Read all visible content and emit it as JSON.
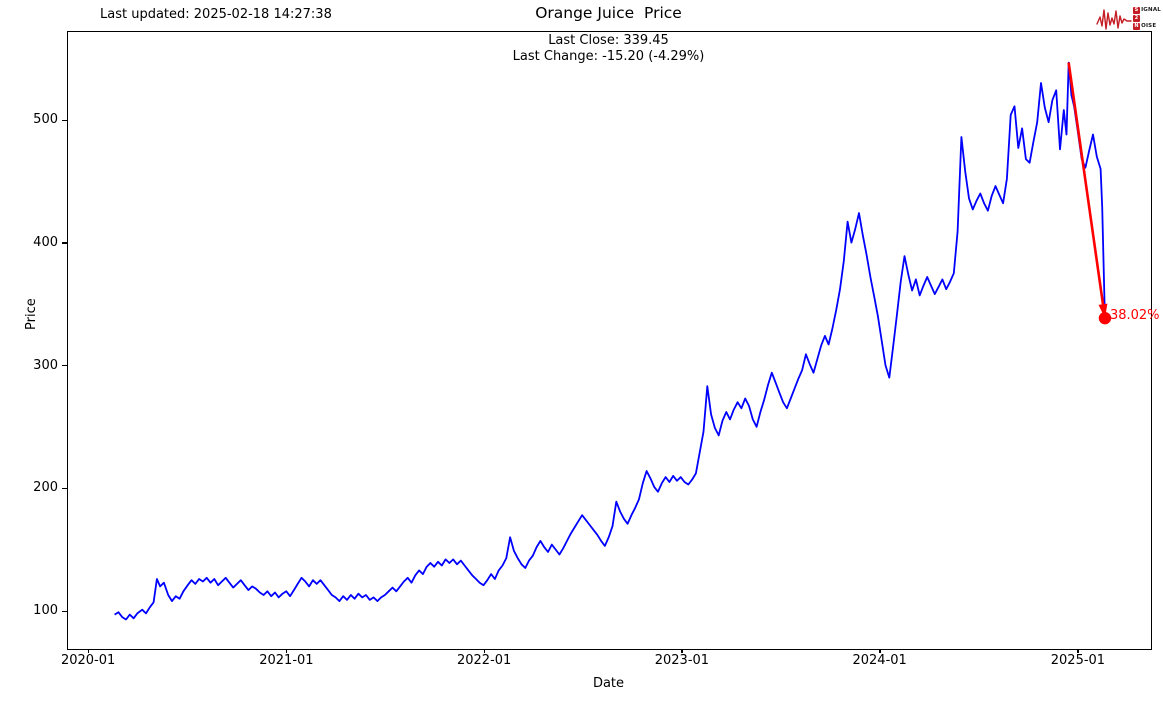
{
  "header": {
    "last_updated": "Last updated: 2025-02-18 14:27:38",
    "title": "Orange Juice  Price",
    "subtitle_close": "Last Close: 339.45",
    "subtitle_change": "Last Change: -15.20 (-4.29%)"
  },
  "logo": {
    "word1_initial": "S",
    "word1_rest": "IGNAL",
    "word2": "2",
    "word3_initial": "N",
    "word3_rest": "OISE",
    "color": "#c41d23"
  },
  "chart_data": {
    "type": "line",
    "title": "Orange Juice  Price",
    "xlabel": "Date",
    "ylabel": "Price",
    "legend": "none",
    "grid": false,
    "x_ticks": [
      "2020-01",
      "2021-01",
      "2022-01",
      "2023-01",
      "2024-01",
      "2025-01"
    ],
    "y_ticks": [
      100,
      200,
      300,
      400,
      500
    ],
    "xlim": [
      "2019-11-23",
      "2025-05-14"
    ],
    "ylim": [
      70,
      572.5
    ],
    "line_color": "#0000ff",
    "annotation": {
      "label": "38.02%",
      "color": "#ff0000",
      "from": [
        "2024-12-13",
        547.6
      ],
      "to": [
        "2025-02-18",
        339.45
      ],
      "last_close": 339.45,
      "last_change": -15.2,
      "last_change_pct": -4.29
    },
    "series": [
      {
        "name": "Price",
        "points": [
          [
            "2020-02-17",
            98
          ],
          [
            "2020-02-24",
            100
          ],
          [
            "2020-03-02",
            96
          ],
          [
            "2020-03-09",
            94
          ],
          [
            "2020-03-16",
            98
          ],
          [
            "2020-03-23",
            95
          ],
          [
            "2020-03-30",
            99
          ],
          [
            "2020-04-08",
            102
          ],
          [
            "2020-04-15",
            99
          ],
          [
            "2020-04-22",
            104
          ],
          [
            "2020-04-29",
            108
          ],
          [
            "2020-05-05",
            127
          ],
          [
            "2020-05-11",
            121
          ],
          [
            "2020-05-18",
            124
          ],
          [
            "2020-05-26",
            114
          ],
          [
            "2020-06-02",
            109
          ],
          [
            "2020-06-09",
            113
          ],
          [
            "2020-06-16",
            111
          ],
          [
            "2020-06-23",
            117
          ],
          [
            "2020-07-01",
            122
          ],
          [
            "2020-07-08",
            126
          ],
          [
            "2020-07-15",
            123
          ],
          [
            "2020-07-22",
            127
          ],
          [
            "2020-07-29",
            125
          ],
          [
            "2020-08-05",
            128
          ],
          [
            "2020-08-12",
            124
          ],
          [
            "2020-08-19",
            127
          ],
          [
            "2020-08-26",
            122
          ],
          [
            "2020-09-02",
            125
          ],
          [
            "2020-09-09",
            128
          ],
          [
            "2020-09-16",
            124
          ],
          [
            "2020-09-23",
            120
          ],
          [
            "2020-09-30",
            123
          ],
          [
            "2020-10-07",
            126
          ],
          [
            "2020-10-14",
            122
          ],
          [
            "2020-10-21",
            118
          ],
          [
            "2020-10-28",
            121
          ],
          [
            "2020-11-04",
            119
          ],
          [
            "2020-11-11",
            116
          ],
          [
            "2020-11-18",
            114
          ],
          [
            "2020-11-25",
            117
          ],
          [
            "2020-12-02",
            113
          ],
          [
            "2020-12-09",
            116
          ],
          [
            "2020-12-16",
            112
          ],
          [
            "2020-12-23",
            115
          ],
          [
            "2020-12-30",
            117
          ],
          [
            "2021-01-06",
            113
          ],
          [
            "2021-01-13",
            118
          ],
          [
            "2021-01-20",
            123
          ],
          [
            "2021-01-27",
            128
          ],
          [
            "2021-02-03",
            125
          ],
          [
            "2021-02-10",
            121
          ],
          [
            "2021-02-17",
            126
          ],
          [
            "2021-02-24",
            123
          ],
          [
            "2021-03-03",
            126
          ],
          [
            "2021-03-10",
            122
          ],
          [
            "2021-03-17",
            118
          ],
          [
            "2021-03-24",
            114
          ],
          [
            "2021-03-31",
            112
          ],
          [
            "2021-04-07",
            109
          ],
          [
            "2021-04-14",
            113
          ],
          [
            "2021-04-21",
            110
          ],
          [
            "2021-04-28",
            114
          ],
          [
            "2021-05-05",
            111
          ],
          [
            "2021-05-12",
            115
          ],
          [
            "2021-05-19",
            112
          ],
          [
            "2021-05-26",
            114
          ],
          [
            "2021-06-02",
            110
          ],
          [
            "2021-06-09",
            112
          ],
          [
            "2021-06-16",
            109
          ],
          [
            "2021-06-23",
            112
          ],
          [
            "2021-06-30",
            114
          ],
          [
            "2021-07-07",
            117
          ],
          [
            "2021-07-14",
            120
          ],
          [
            "2021-07-21",
            117
          ],
          [
            "2021-07-28",
            121
          ],
          [
            "2021-08-04",
            125
          ],
          [
            "2021-08-11",
            128
          ],
          [
            "2021-08-18",
            124
          ],
          [
            "2021-08-25",
            130
          ],
          [
            "2021-09-01",
            134
          ],
          [
            "2021-09-08",
            131
          ],
          [
            "2021-09-15",
            137
          ],
          [
            "2021-09-22",
            140
          ],
          [
            "2021-09-29",
            137
          ],
          [
            "2021-10-06",
            141
          ],
          [
            "2021-10-13",
            138
          ],
          [
            "2021-10-20",
            143
          ],
          [
            "2021-10-27",
            140
          ],
          [
            "2021-11-03",
            143
          ],
          [
            "2021-11-10",
            139
          ],
          [
            "2021-11-17",
            142
          ],
          [
            "2021-11-24",
            138
          ],
          [
            "2021-12-01",
            134
          ],
          [
            "2021-12-08",
            130
          ],
          [
            "2021-12-15",
            127
          ],
          [
            "2021-12-22",
            124
          ],
          [
            "2021-12-29",
            122
          ],
          [
            "2022-01-05",
            126
          ],
          [
            "2022-01-12",
            131
          ],
          [
            "2022-01-19",
            127
          ],
          [
            "2022-01-26",
            134
          ],
          [
            "2022-02-02",
            138
          ],
          [
            "2022-02-09",
            144
          ],
          [
            "2022-02-16",
            161
          ],
          [
            "2022-02-23",
            150
          ],
          [
            "2022-03-02",
            144
          ],
          [
            "2022-03-09",
            139
          ],
          [
            "2022-03-16",
            136
          ],
          [
            "2022-03-23",
            142
          ],
          [
            "2022-03-30",
            146
          ],
          [
            "2022-04-06",
            153
          ],
          [
            "2022-04-13",
            158
          ],
          [
            "2022-04-20",
            153
          ],
          [
            "2022-04-27",
            149
          ],
          [
            "2022-05-04",
            155
          ],
          [
            "2022-05-11",
            151
          ],
          [
            "2022-05-18",
            147
          ],
          [
            "2022-05-25",
            152
          ],
          [
            "2022-06-01",
            158
          ],
          [
            "2022-06-08",
            164
          ],
          [
            "2022-06-15",
            169
          ],
          [
            "2022-06-22",
            174
          ],
          [
            "2022-06-29",
            179
          ],
          [
            "2022-07-06",
            175
          ],
          [
            "2022-07-13",
            171
          ],
          [
            "2022-07-20",
            167
          ],
          [
            "2022-07-27",
            163
          ],
          [
            "2022-08-03",
            158
          ],
          [
            "2022-08-10",
            154
          ],
          [
            "2022-08-17",
            161
          ],
          [
            "2022-08-24",
            170
          ],
          [
            "2022-08-31",
            190
          ],
          [
            "2022-09-07",
            182
          ],
          [
            "2022-09-14",
            176
          ],
          [
            "2022-09-21",
            172
          ],
          [
            "2022-09-28",
            179
          ],
          [
            "2022-10-05",
            185
          ],
          [
            "2022-10-12",
            192
          ],
          [
            "2022-10-19",
            205
          ],
          [
            "2022-10-26",
            215
          ],
          [
            "2022-11-02",
            209
          ],
          [
            "2022-11-09",
            202
          ],
          [
            "2022-11-16",
            198
          ],
          [
            "2022-11-23",
            205
          ],
          [
            "2022-11-30",
            210
          ],
          [
            "2022-12-07",
            206
          ],
          [
            "2022-12-14",
            211
          ],
          [
            "2022-12-21",
            207
          ],
          [
            "2022-12-28",
            210
          ],
          [
            "2023-01-04",
            206
          ],
          [
            "2023-01-11",
            204
          ],
          [
            "2023-01-18",
            208
          ],
          [
            "2023-01-25",
            213
          ],
          [
            "2023-02-01",
            230
          ],
          [
            "2023-02-08",
            247
          ],
          [
            "2023-02-15",
            284
          ],
          [
            "2023-02-22",
            261
          ],
          [
            "2023-03-01",
            250
          ],
          [
            "2023-03-08",
            244
          ],
          [
            "2023-03-15",
            256
          ],
          [
            "2023-03-22",
            263
          ],
          [
            "2023-03-29",
            257
          ],
          [
            "2023-04-05",
            265
          ],
          [
            "2023-04-12",
            271
          ],
          [
            "2023-04-19",
            266
          ],
          [
            "2023-04-26",
            274
          ],
          [
            "2023-05-03",
            268
          ],
          [
            "2023-05-10",
            257
          ],
          [
            "2023-05-17",
            251
          ],
          [
            "2023-05-24",
            263
          ],
          [
            "2023-05-31",
            273
          ],
          [
            "2023-06-07",
            285
          ],
          [
            "2023-06-14",
            295
          ],
          [
            "2023-06-21",
            287
          ],
          [
            "2023-06-28",
            279
          ],
          [
            "2023-07-05",
            271
          ],
          [
            "2023-07-12",
            266
          ],
          [
            "2023-07-19",
            274
          ],
          [
            "2023-07-26",
            282
          ],
          [
            "2023-08-02",
            290
          ],
          [
            "2023-08-09",
            297
          ],
          [
            "2023-08-16",
            310
          ],
          [
            "2023-08-23",
            302
          ],
          [
            "2023-08-30",
            295
          ],
          [
            "2023-09-06",
            306
          ],
          [
            "2023-09-13",
            317
          ],
          [
            "2023-09-20",
            325
          ],
          [
            "2023-09-27",
            318
          ],
          [
            "2023-10-04",
            331
          ],
          [
            "2023-10-11",
            346
          ],
          [
            "2023-10-18",
            363
          ],
          [
            "2023-10-25",
            386
          ],
          [
            "2023-11-01",
            418
          ],
          [
            "2023-11-08",
            401
          ],
          [
            "2023-11-15",
            412
          ],
          [
            "2023-11-22",
            425
          ],
          [
            "2023-11-29",
            407
          ],
          [
            "2023-12-06",
            391
          ],
          [
            "2023-12-13",
            373
          ],
          [
            "2023-12-20",
            357
          ],
          [
            "2023-12-27",
            341
          ],
          [
            "2024-01-03",
            321
          ],
          [
            "2024-01-10",
            301
          ],
          [
            "2024-01-17",
            291
          ],
          [
            "2024-01-24",
            316
          ],
          [
            "2024-01-31",
            342
          ],
          [
            "2024-02-07",
            369
          ],
          [
            "2024-02-14",
            390
          ],
          [
            "2024-02-21",
            375
          ],
          [
            "2024-02-28",
            362
          ],
          [
            "2024-03-06",
            371
          ],
          [
            "2024-03-13",
            358
          ],
          [
            "2024-03-20",
            366
          ],
          [
            "2024-03-27",
            373
          ],
          [
            "2024-04-03",
            366
          ],
          [
            "2024-04-10",
            359
          ],
          [
            "2024-04-17",
            365
          ],
          [
            "2024-04-24",
            371
          ],
          [
            "2024-05-01",
            363
          ],
          [
            "2024-05-08",
            369
          ],
          [
            "2024-05-15",
            376
          ],
          [
            "2024-05-22",
            410
          ],
          [
            "2024-05-29",
            487
          ],
          [
            "2024-06-05",
            459
          ],
          [
            "2024-06-12",
            437
          ],
          [
            "2024-06-19",
            428
          ],
          [
            "2024-06-26",
            435
          ],
          [
            "2024-07-03",
            441
          ],
          [
            "2024-07-10",
            433
          ],
          [
            "2024-07-17",
            427
          ],
          [
            "2024-07-24",
            439
          ],
          [
            "2024-07-31",
            447
          ],
          [
            "2024-08-07",
            440
          ],
          [
            "2024-08-14",
            433
          ],
          [
            "2024-08-21",
            453
          ],
          [
            "2024-08-28",
            505
          ],
          [
            "2024-09-04",
            512
          ],
          [
            "2024-09-11",
            478
          ],
          [
            "2024-09-18",
            494
          ],
          [
            "2024-09-25",
            469
          ],
          [
            "2024-10-02",
            466
          ],
          [
            "2024-10-09",
            483
          ],
          [
            "2024-10-16",
            499
          ],
          [
            "2024-10-23",
            531
          ],
          [
            "2024-10-30",
            511
          ],
          [
            "2024-11-06",
            499
          ],
          [
            "2024-11-13",
            517
          ],
          [
            "2024-11-20",
            525
          ],
          [
            "2024-11-27",
            477
          ],
          [
            "2024-12-04",
            509
          ],
          [
            "2024-12-09",
            489
          ],
          [
            "2024-12-13",
            547.6
          ],
          [
            "2024-12-18",
            521
          ],
          [
            "2024-12-23",
            512
          ],
          [
            "2024-12-30",
            491
          ],
          [
            "2025-01-06",
            469
          ],
          [
            "2025-01-13",
            462
          ],
          [
            "2025-01-20",
            476
          ],
          [
            "2025-01-27",
            489
          ],
          [
            "2025-02-03",
            471
          ],
          [
            "2025-02-10",
            461
          ],
          [
            "2025-02-13",
            430
          ],
          [
            "2025-02-18",
            339.45
          ]
        ]
      }
    ]
  }
}
